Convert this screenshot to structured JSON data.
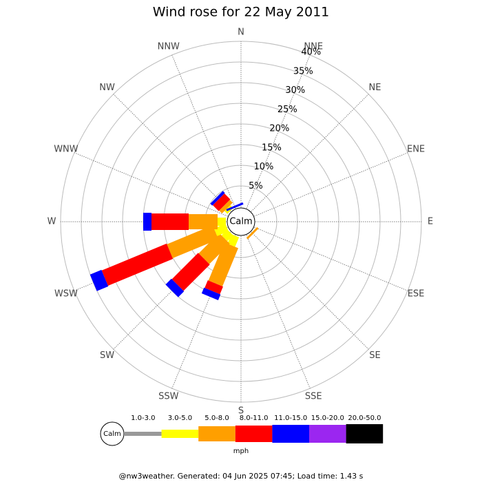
{
  "chart_data": {
    "type": "windrose",
    "title": "Wind rose for 22 May 2011",
    "categories": [
      "N",
      "NNE",
      "NE",
      "ENE",
      "E",
      "ESE",
      "SE",
      "SSE",
      "S",
      "SSW",
      "SW",
      "WSW",
      "W",
      "WNW",
      "NW",
      "NNW"
    ],
    "series": [
      {
        "name": "1.0-3.0",
        "color": "#999999",
        "values": [
          0,
          0,
          0,
          0,
          0,
          0,
          0,
          0,
          0,
          0,
          0,
          0,
          0,
          0,
          0,
          0
        ]
      },
      {
        "name": "3.0-5.0",
        "color": "#ffff00",
        "values": [
          0,
          0,
          0,
          0,
          0,
          0,
          0,
          0,
          0,
          2.5,
          2,
          3,
          2,
          0,
          1,
          0
        ]
      },
      {
        "name": "5.0-8.0",
        "color": "#ff9f00",
        "values": [
          0,
          0,
          0,
          0,
          0,
          0,
          0.5,
          0,
          0,
          10,
          7,
          12,
          7,
          0,
          1,
          0
        ]
      },
      {
        "name": "8.0-11.0",
        "color": "#ff0000",
        "values": [
          0,
          0,
          0,
          0,
          0,
          0,
          0,
          0,
          0,
          2,
          9,
          17,
          9,
          0,
          2,
          0
        ]
      },
      {
        "name": "11.0-15.0",
        "color": "#0000ff",
        "values": [
          0,
          0,
          0,
          0,
          0,
          0,
          0,
          0,
          0,
          1.5,
          2,
          3,
          2,
          0,
          0.7,
          0.5
        ]
      },
      {
        "name": "15.0-20.0",
        "color": "#9b26f0",
        "values": [
          0,
          0,
          0,
          0,
          0,
          0,
          0,
          0,
          0,
          0,
          0,
          0,
          0,
          0,
          0,
          0
        ]
      },
      {
        "name": "20.0-50.0",
        "color": "#000000",
        "values": [
          0,
          0,
          0,
          0,
          0,
          0,
          0,
          0,
          0,
          0,
          0,
          0,
          0,
          0,
          0,
          0
        ]
      }
    ],
    "rlim": [
      0,
      40
    ],
    "rticks": [
      {
        "value": 5,
        "label": "5%"
      },
      {
        "value": 10,
        "label": "10%"
      },
      {
        "value": 15,
        "label": "15%"
      },
      {
        "value": 20,
        "label": "20%"
      },
      {
        "value": 25,
        "label": "25%"
      },
      {
        "value": 30,
        "label": "30%"
      },
      {
        "value": 35,
        "label": "35%"
      },
      {
        "value": 40,
        "label": "40%"
      }
    ],
    "calm_label": "Calm",
    "unit": "mph",
    "footer": "@nw3weather. Generated: 04 Jun 2025 07:45; Load time: 1.43 s"
  }
}
